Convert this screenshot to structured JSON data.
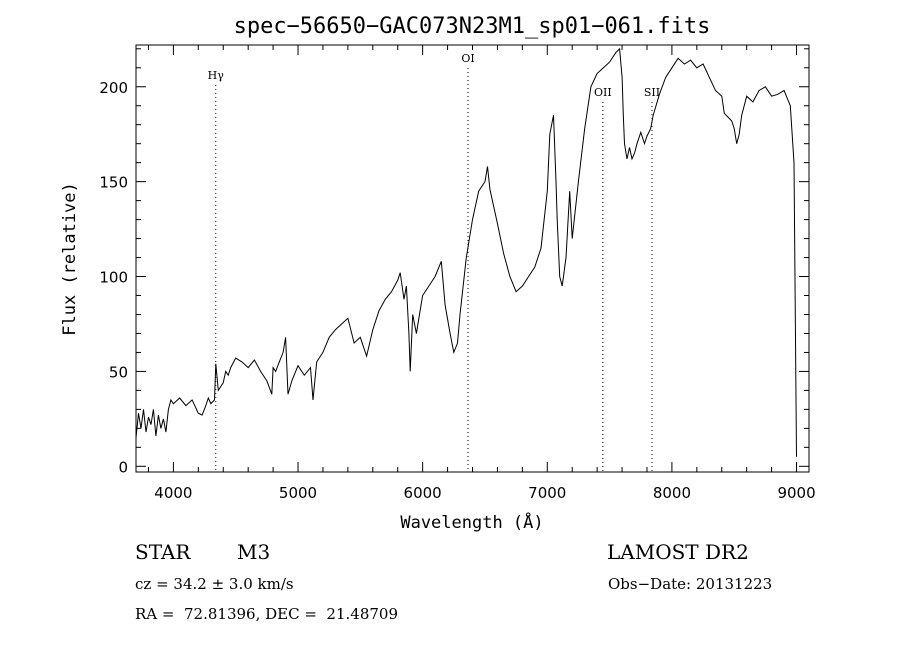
{
  "chart_data": {
    "type": "line",
    "title": "spec−56650−GAC073N23M1_sp01−061.fits",
    "xlabel": "Wavelength (Å)",
    "ylabel": "Flux (relative)",
    "xlim": [
      3700,
      9100
    ],
    "ylim": [
      -3,
      222
    ],
    "xticks": [
      4000,
      5000,
      6000,
      7000,
      8000,
      9000
    ],
    "yticks": [
      0,
      50,
      100,
      150,
      200
    ],
    "grid": false,
    "lines": [
      {
        "label": "Hγ",
        "x": 4340
      },
      {
        "label": "OI",
        "x": 6364
      },
      {
        "label": "OII",
        "x": 7446
      },
      {
        "label": "SII",
        "x": 7840
      }
    ],
    "series": [
      {
        "x": [
          3700,
          3720,
          3740,
          3760,
          3780,
          3800,
          3820,
          3840,
          3860,
          3880,
          3900,
          3920,
          3940,
          3960,
          3980,
          4000,
          4050,
          4100,
          4150,
          4200,
          4230,
          4260,
          4280,
          4300,
          4330,
          4340,
          4360,
          4400,
          4420,
          4440,
          4460,
          4500,
          4550,
          4600,
          4650,
          4700,
          4750,
          4790,
          4800,
          4820,
          4850,
          4880,
          4900,
          4920,
          4950,
          5000,
          5050,
          5100,
          5120,
          5150,
          5200,
          5250,
          5300,
          5350,
          5400,
          5450,
          5500,
          5550,
          5600,
          5650,
          5700,
          5750,
          5800,
          5820,
          5850,
          5870,
          5890,
          5900,
          5920,
          5950,
          6000,
          6050,
          6100,
          6150,
          6180,
          6220,
          6250,
          6280,
          6300,
          6350,
          6400,
          6450,
          6500,
          6520,
          6540,
          6560,
          6600,
          6650,
          6700,
          6750,
          6800,
          6850,
          6900,
          6950,
          7000,
          7020,
          7050,
          7070,
          7080,
          7100,
          7120,
          7150,
          7180,
          7200,
          7250,
          7300,
          7350,
          7400,
          7450,
          7500,
          7550,
          7580,
          7600,
          7610,
          7620,
          7640,
          7660,
          7680,
          7700,
          7720,
          7750,
          7780,
          7800,
          7830,
          7850,
          7900,
          7950,
          8000,
          8050,
          8100,
          8150,
          8200,
          8250,
          8300,
          8350,
          8400,
          8420,
          8450,
          8480,
          8500,
          8520,
          8540,
          8560,
          8580,
          8600,
          8650,
          8700,
          8750,
          8800,
          8850,
          8900,
          8950,
          8980,
          9000
        ],
        "y": [
          15,
          28,
          20,
          30,
          18,
          26,
          22,
          30,
          16,
          27,
          20,
          25,
          18,
          30,
          35,
          33,
          36,
          32,
          35,
          28,
          27,
          32,
          36,
          33,
          35,
          54,
          40,
          44,
          50,
          48,
          52,
          57,
          55,
          52,
          56,
          50,
          45,
          38,
          52,
          50,
          55,
          60,
          68,
          38,
          45,
          53,
          48,
          52,
          35,
          55,
          60,
          68,
          72,
          75,
          78,
          65,
          68,
          58,
          72,
          82,
          88,
          92,
          98,
          102,
          88,
          95,
          70,
          50,
          80,
          70,
          90,
          95,
          100,
          108,
          85,
          70,
          60,
          65,
          80,
          110,
          130,
          145,
          150,
          158,
          146,
          140,
          128,
          112,
          100,
          92,
          95,
          100,
          105,
          115,
          145,
          175,
          185,
          150,
          130,
          100,
          95,
          110,
          145,
          120,
          150,
          178,
          200,
          207,
          210,
          213,
          218,
          220,
          205,
          185,
          170,
          162,
          168,
          162,
          165,
          170,
          176,
          170,
          174,
          178,
          185,
          196,
          205,
          210,
          215,
          212,
          214,
          210,
          212,
          205,
          198,
          195,
          186,
          184,
          182,
          178,
          170,
          175,
          185,
          190,
          195,
          192,
          198,
          200,
          195,
          196,
          198,
          190,
          160,
          5
        ]
      }
    ]
  },
  "info": {
    "object_class": "STAR",
    "subclass": "M3",
    "survey": "LAMOST DR2",
    "cz": "cz = 34.2 ± 3.0 km/s",
    "obs_date": "Obs−Date: 20131223",
    "coords": "RA =  72.81396, DEC =  21.48709"
  }
}
